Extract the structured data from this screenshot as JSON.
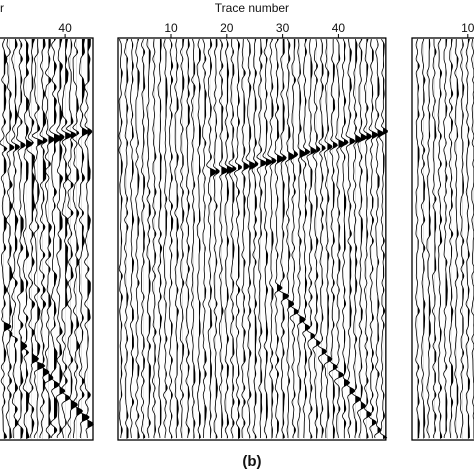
{
  "chart_data": [
    {
      "type": "seismic",
      "x_label": "r",
      "xlim": [
        28,
        45
      ],
      "xticks": [
        40
      ]
    },
    {
      "type": "seismic",
      "x_label": "Trace number",
      "xlim": [
        0.5,
        48.5
      ],
      "xticks": [
        10,
        20,
        30,
        40
      ],
      "caption": "(b)"
    },
    {
      "type": "seismic",
      "xlim": [
        0,
        12
      ],
      "xticks": [
        10
      ]
    }
  ]
}
